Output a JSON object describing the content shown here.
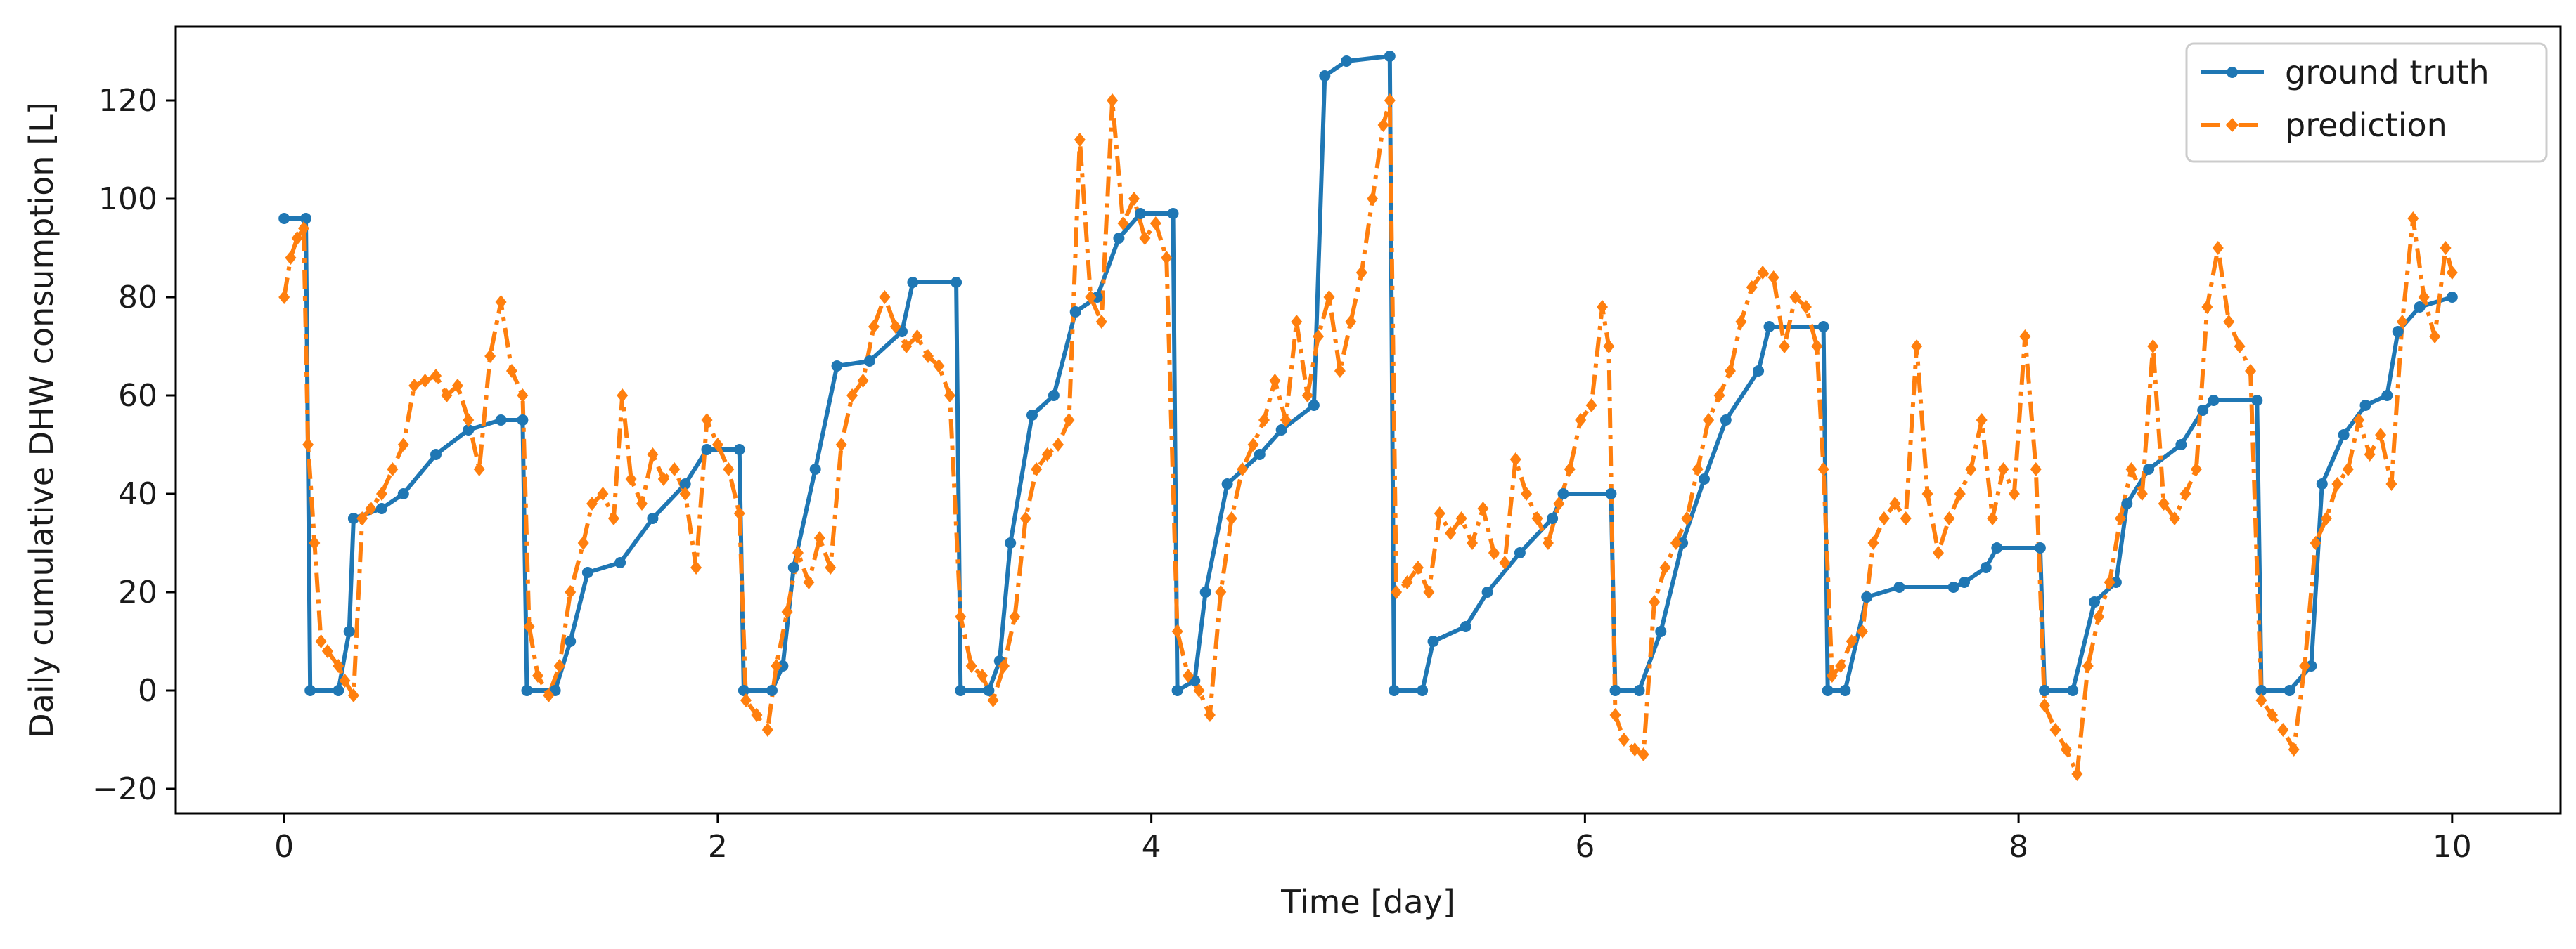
{
  "chart_data": {
    "type": "line",
    "title": "",
    "xlabel": "Time [day]",
    "ylabel": "Daily cumulative DHW consumption [L]",
    "xlim": [
      -0.5,
      10.5
    ],
    "ylim": [
      -25,
      135
    ],
    "xticks": [
      0,
      2,
      4,
      6,
      8,
      10
    ],
    "yticks": [
      -20,
      0,
      20,
      40,
      60,
      80,
      100,
      120
    ],
    "xtick_labels": [
      "0",
      "2",
      "4",
      "6",
      "8",
      "10"
    ],
    "ytick_labels": [
      "−20",
      "0",
      "20",
      "40",
      "60",
      "80",
      "100",
      "120"
    ],
    "legend": {
      "position": "top-right",
      "entries": [
        "ground truth",
        "prediction"
      ]
    },
    "colors": {
      "ground_truth": "#1f77b4",
      "prediction": "#ff7f0e",
      "axis": "#000000"
    },
    "series": [
      {
        "name": "ground truth",
        "style": "solid",
        "marker": "circle",
        "points": [
          [
            0.0,
            96
          ],
          [
            0.1,
            96
          ],
          [
            0.12,
            0
          ],
          [
            0.25,
            0
          ],
          [
            0.3,
            12
          ],
          [
            0.32,
            35
          ],
          [
            0.45,
            37
          ],
          [
            0.55,
            40
          ],
          [
            0.7,
            48
          ],
          [
            0.85,
            53
          ],
          [
            1.0,
            55
          ],
          [
            1.1,
            55
          ],
          [
            1.12,
            0
          ],
          [
            1.25,
            0
          ],
          [
            1.32,
            10
          ],
          [
            1.4,
            24
          ],
          [
            1.55,
            26
          ],
          [
            1.7,
            35
          ],
          [
            1.85,
            42
          ],
          [
            1.95,
            49
          ],
          [
            2.1,
            49
          ],
          [
            2.12,
            0
          ],
          [
            2.25,
            0
          ],
          [
            2.3,
            5
          ],
          [
            2.35,
            25
          ],
          [
            2.45,
            45
          ],
          [
            2.55,
            66
          ],
          [
            2.7,
            67
          ],
          [
            2.85,
            73
          ],
          [
            2.9,
            83
          ],
          [
            3.1,
            83
          ],
          [
            3.12,
            0
          ],
          [
            3.25,
            0
          ],
          [
            3.3,
            6
          ],
          [
            3.35,
            30
          ],
          [
            3.45,
            56
          ],
          [
            3.55,
            60
          ],
          [
            3.65,
            77
          ],
          [
            3.75,
            80
          ],
          [
            3.85,
            92
          ],
          [
            3.95,
            97
          ],
          [
            4.1,
            97
          ],
          [
            4.12,
            0
          ],
          [
            4.2,
            2
          ],
          [
            4.25,
            20
          ],
          [
            4.35,
            42
          ],
          [
            4.5,
            48
          ],
          [
            4.6,
            53
          ],
          [
            4.75,
            58
          ],
          [
            4.8,
            125
          ],
          [
            4.9,
            128
          ],
          [
            5.1,
            129
          ],
          [
            5.12,
            0
          ],
          [
            5.25,
            0
          ],
          [
            5.3,
            10
          ],
          [
            5.45,
            13
          ],
          [
            5.55,
            20
          ],
          [
            5.7,
            28
          ],
          [
            5.85,
            35
          ],
          [
            5.9,
            40
          ],
          [
            6.12,
            40
          ],
          [
            6.14,
            0
          ],
          [
            6.25,
            0
          ],
          [
            6.35,
            12
          ],
          [
            6.45,
            30
          ],
          [
            6.55,
            43
          ],
          [
            6.65,
            55
          ],
          [
            6.8,
            65
          ],
          [
            6.85,
            74
          ],
          [
            7.1,
            74
          ],
          [
            7.12,
            0
          ],
          [
            7.2,
            0
          ],
          [
            7.3,
            19
          ],
          [
            7.45,
            21
          ],
          [
            7.7,
            21
          ],
          [
            7.75,
            22
          ],
          [
            7.85,
            25
          ],
          [
            7.9,
            29
          ],
          [
            8.1,
            29
          ],
          [
            8.12,
            0
          ],
          [
            8.25,
            0
          ],
          [
            8.35,
            18
          ],
          [
            8.45,
            22
          ],
          [
            8.5,
            38
          ],
          [
            8.6,
            45
          ],
          [
            8.75,
            50
          ],
          [
            8.85,
            57
          ],
          [
            8.9,
            59
          ],
          [
            9.1,
            59
          ],
          [
            9.12,
            0
          ],
          [
            9.25,
            0
          ],
          [
            9.35,
            5
          ],
          [
            9.4,
            42
          ],
          [
            9.5,
            52
          ],
          [
            9.6,
            58
          ],
          [
            9.7,
            60
          ],
          [
            9.75,
            73
          ],
          [
            9.85,
            78
          ],
          [
            10.0,
            80
          ]
        ]
      },
      {
        "name": "prediction",
        "style": "dashdot",
        "marker": "diamond",
        "points": [
          [
            0.0,
            80
          ],
          [
            0.03,
            88
          ],
          [
            0.06,
            92
          ],
          [
            0.09,
            94
          ],
          [
            0.11,
            50
          ],
          [
            0.14,
            30
          ],
          [
            0.17,
            10
          ],
          [
            0.2,
            8
          ],
          [
            0.25,
            5
          ],
          [
            0.28,
            2
          ],
          [
            0.32,
            -1
          ],
          [
            0.36,
            35
          ],
          [
            0.4,
            37
          ],
          [
            0.45,
            40
          ],
          [
            0.5,
            45
          ],
          [
            0.55,
            50
          ],
          [
            0.6,
            62
          ],
          [
            0.65,
            63
          ],
          [
            0.7,
            64
          ],
          [
            0.75,
            60
          ],
          [
            0.8,
            62
          ],
          [
            0.85,
            55
          ],
          [
            0.9,
            45
          ],
          [
            0.95,
            68
          ],
          [
            1.0,
            79
          ],
          [
            1.05,
            65
          ],
          [
            1.1,
            60
          ],
          [
            1.13,
            13
          ],
          [
            1.17,
            3
          ],
          [
            1.22,
            -1
          ],
          [
            1.27,
            5
          ],
          [
            1.32,
            20
          ],
          [
            1.38,
            30
          ],
          [
            1.42,
            38
          ],
          [
            1.47,
            40
          ],
          [
            1.52,
            35
          ],
          [
            1.56,
            60
          ],
          [
            1.6,
            43
          ],
          [
            1.65,
            38
          ],
          [
            1.7,
            48
          ],
          [
            1.75,
            43
          ],
          [
            1.8,
            45
          ],
          [
            1.85,
            40
          ],
          [
            1.9,
            25
          ],
          [
            1.95,
            55
          ],
          [
            2.0,
            50
          ],
          [
            2.05,
            45
          ],
          [
            2.1,
            36
          ],
          [
            2.13,
            -2
          ],
          [
            2.18,
            -5
          ],
          [
            2.23,
            -8
          ],
          [
            2.27,
            5
          ],
          [
            2.32,
            16
          ],
          [
            2.37,
            28
          ],
          [
            2.42,
            22
          ],
          [
            2.47,
            31
          ],
          [
            2.52,
            25
          ],
          [
            2.57,
            50
          ],
          [
            2.62,
            60
          ],
          [
            2.67,
            63
          ],
          [
            2.72,
            74
          ],
          [
            2.77,
            80
          ],
          [
            2.82,
            74
          ],
          [
            2.87,
            70
          ],
          [
            2.92,
            72
          ],
          [
            2.97,
            68
          ],
          [
            3.02,
            66
          ],
          [
            3.07,
            60
          ],
          [
            3.12,
            15
          ],
          [
            3.17,
            5
          ],
          [
            3.22,
            3
          ],
          [
            3.27,
            -2
          ],
          [
            3.32,
            5
          ],
          [
            3.37,
            15
          ],
          [
            3.42,
            35
          ],
          [
            3.47,
            45
          ],
          [
            3.52,
            48
          ],
          [
            3.57,
            50
          ],
          [
            3.62,
            55
          ],
          [
            3.67,
            112
          ],
          [
            3.72,
            80
          ],
          [
            3.77,
            75
          ],
          [
            3.82,
            120
          ],
          [
            3.87,
            95
          ],
          [
            3.92,
            100
          ],
          [
            3.97,
            92
          ],
          [
            4.02,
            95
          ],
          [
            4.07,
            88
          ],
          [
            4.12,
            12
          ],
          [
            4.17,
            3
          ],
          [
            4.22,
            0
          ],
          [
            4.27,
            -5
          ],
          [
            4.32,
            20
          ],
          [
            4.37,
            35
          ],
          [
            4.42,
            45
          ],
          [
            4.47,
            50
          ],
          [
            4.52,
            55
          ],
          [
            4.57,
            63
          ],
          [
            4.62,
            55
          ],
          [
            4.67,
            75
          ],
          [
            4.72,
            60
          ],
          [
            4.77,
            72
          ],
          [
            4.82,
            80
          ],
          [
            4.87,
            65
          ],
          [
            4.92,
            75
          ],
          [
            4.97,
            85
          ],
          [
            5.02,
            100
          ],
          [
            5.07,
            115
          ],
          [
            5.1,
            120
          ],
          [
            5.13,
            20
          ],
          [
            5.18,
            22
          ],
          [
            5.23,
            25
          ],
          [
            5.28,
            20
          ],
          [
            5.33,
            36
          ],
          [
            5.38,
            32
          ],
          [
            5.43,
            35
          ],
          [
            5.48,
            30
          ],
          [
            5.53,
            37
          ],
          [
            5.58,
            28
          ],
          [
            5.63,
            26
          ],
          [
            5.68,
            47
          ],
          [
            5.73,
            40
          ],
          [
            5.78,
            35
          ],
          [
            5.83,
            30
          ],
          [
            5.88,
            38
          ],
          [
            5.93,
            45
          ],
          [
            5.98,
            55
          ],
          [
            6.03,
            58
          ],
          [
            6.08,
            78
          ],
          [
            6.11,
            70
          ],
          [
            6.14,
            -5
          ],
          [
            6.18,
            -10
          ],
          [
            6.23,
            -12
          ],
          [
            6.27,
            -13
          ],
          [
            6.32,
            18
          ],
          [
            6.37,
            25
          ],
          [
            6.42,
            30
          ],
          [
            6.47,
            35
          ],
          [
            6.52,
            45
          ],
          [
            6.57,
            55
          ],
          [
            6.62,
            60
          ],
          [
            6.67,
            65
          ],
          [
            6.72,
            75
          ],
          [
            6.77,
            82
          ],
          [
            6.82,
            85
          ],
          [
            6.87,
            84
          ],
          [
            6.92,
            70
          ],
          [
            6.97,
            80
          ],
          [
            7.02,
            78
          ],
          [
            7.07,
            70
          ],
          [
            7.1,
            45
          ],
          [
            7.14,
            3
          ],
          [
            7.18,
            5
          ],
          [
            7.23,
            10
          ],
          [
            7.28,
            12
          ],
          [
            7.33,
            30
          ],
          [
            7.38,
            35
          ],
          [
            7.43,
            38
          ],
          [
            7.48,
            35
          ],
          [
            7.53,
            70
          ],
          [
            7.58,
            40
          ],
          [
            7.63,
            28
          ],
          [
            7.68,
            35
          ],
          [
            7.73,
            40
          ],
          [
            7.78,
            45
          ],
          [
            7.83,
            55
          ],
          [
            7.88,
            35
          ],
          [
            7.93,
            45
          ],
          [
            7.98,
            40
          ],
          [
            8.03,
            72
          ],
          [
            8.08,
            45
          ],
          [
            8.12,
            -3
          ],
          [
            8.17,
            -8
          ],
          [
            8.22,
            -12
          ],
          [
            8.27,
            -17
          ],
          [
            8.32,
            5
          ],
          [
            8.37,
            15
          ],
          [
            8.42,
            22
          ],
          [
            8.47,
            35
          ],
          [
            8.52,
            45
          ],
          [
            8.57,
            40
          ],
          [
            8.62,
            70
          ],
          [
            8.67,
            38
          ],
          [
            8.72,
            35
          ],
          [
            8.77,
            40
          ],
          [
            8.82,
            45
          ],
          [
            8.87,
            78
          ],
          [
            8.92,
            90
          ],
          [
            8.97,
            75
          ],
          [
            9.02,
            70
          ],
          [
            9.07,
            65
          ],
          [
            9.12,
            -2
          ],
          [
            9.17,
            -5
          ],
          [
            9.22,
            -8
          ],
          [
            9.27,
            -12
          ],
          [
            9.32,
            5
          ],
          [
            9.37,
            30
          ],
          [
            9.42,
            35
          ],
          [
            9.47,
            42
          ],
          [
            9.52,
            45
          ],
          [
            9.57,
            55
          ],
          [
            9.62,
            48
          ],
          [
            9.67,
            52
          ],
          [
            9.72,
            42
          ],
          [
            9.77,
            75
          ],
          [
            9.82,
            96
          ],
          [
            9.87,
            80
          ],
          [
            9.92,
            72
          ],
          [
            9.97,
            90
          ],
          [
            10.0,
            85
          ]
        ]
      }
    ]
  }
}
